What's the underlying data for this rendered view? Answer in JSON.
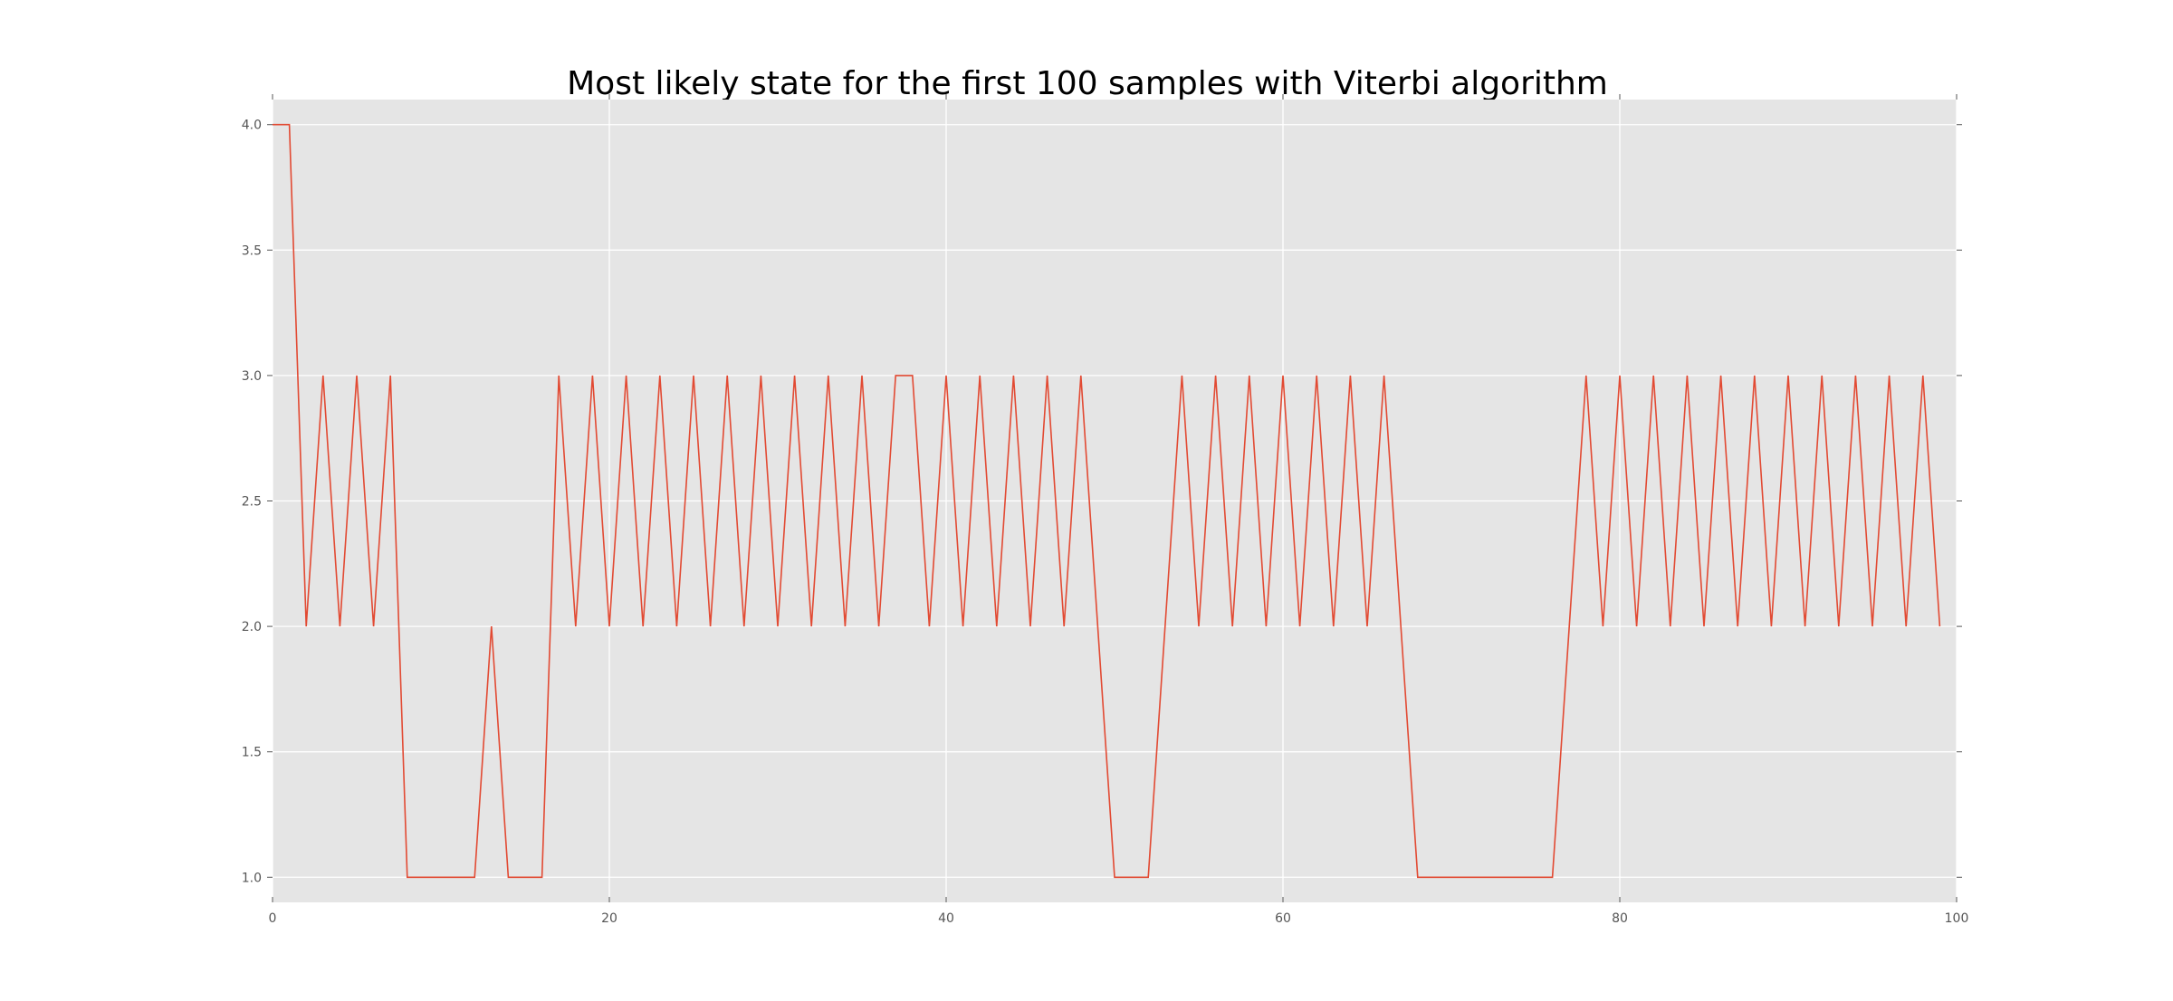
{
  "chart_data": {
    "type": "line",
    "title": "Most likely state for the first 100 samples with Viterbi algorithm",
    "xlabel": "",
    "ylabel": "",
    "xlim": [
      0,
      100
    ],
    "ylim": [
      0.9,
      4.1
    ],
    "xticks": [
      0,
      20,
      40,
      60,
      80,
      100
    ],
    "xtick_labels": [
      "0",
      "20",
      "40",
      "60",
      "80",
      "100"
    ],
    "yticks": [
      1.0,
      1.5,
      2.0,
      2.5,
      3.0,
      3.5,
      4.0
    ],
    "ytick_labels": [
      "1.0",
      "1.5",
      "2.0",
      "2.5",
      "3.0",
      "3.5",
      "4.0"
    ],
    "grid": true,
    "style": "ggplot",
    "colors": {
      "line": "#E24A33",
      "plot_bg": "#E5E5E5",
      "grid": "#FFFFFF",
      "tick_text": "#555555"
    },
    "series": [
      {
        "x": [
          0,
          1,
          2,
          3,
          4,
          5,
          6,
          7,
          8,
          9,
          10,
          11,
          12,
          13,
          14,
          15,
          16,
          17,
          18,
          19,
          20,
          21,
          22,
          23,
          24,
          25,
          26,
          27,
          28,
          29,
          30,
          31,
          32,
          33,
          34,
          35,
          36,
          37,
          38,
          39,
          40,
          41,
          42,
          43,
          44,
          45,
          46,
          47,
          48,
          49,
          50,
          51,
          52,
          53,
          54,
          55,
          56,
          57,
          58,
          59,
          60,
          61,
          62,
          63,
          64,
          65,
          66,
          67,
          68,
          69,
          70,
          71,
          72,
          73,
          74,
          75,
          76,
          77,
          78,
          79,
          80,
          81,
          82,
          83,
          84,
          85,
          86,
          87,
          88,
          89,
          90,
          91,
          92,
          93,
          94,
          95,
          96,
          97,
          98,
          99
        ],
        "y": [
          4,
          4,
          2,
          3,
          2,
          3,
          2,
          3,
          1,
          1,
          1,
          1,
          1,
          2,
          1,
          1,
          1,
          3,
          2,
          3,
          2,
          3,
          2,
          3,
          2,
          3,
          2,
          3,
          2,
          3,
          2,
          3,
          2,
          3,
          2,
          3,
          2,
          3,
          3,
          2,
          3,
          2,
          3,
          2,
          3,
          2,
          3,
          2,
          3,
          2,
          1,
          1,
          1,
          2,
          3,
          2,
          3,
          2,
          3,
          2,
          3,
          2,
          3,
          2,
          3,
          2,
          3,
          2,
          1,
          1,
          1,
          1,
          1,
          1,
          1,
          1,
          1,
          2,
          3,
          2,
          3,
          2,
          3,
          2,
          3,
          2,
          3,
          2,
          3,
          2,
          3,
          2,
          3,
          2,
          3,
          2,
          3,
          2,
          3,
          2
        ]
      }
    ]
  }
}
